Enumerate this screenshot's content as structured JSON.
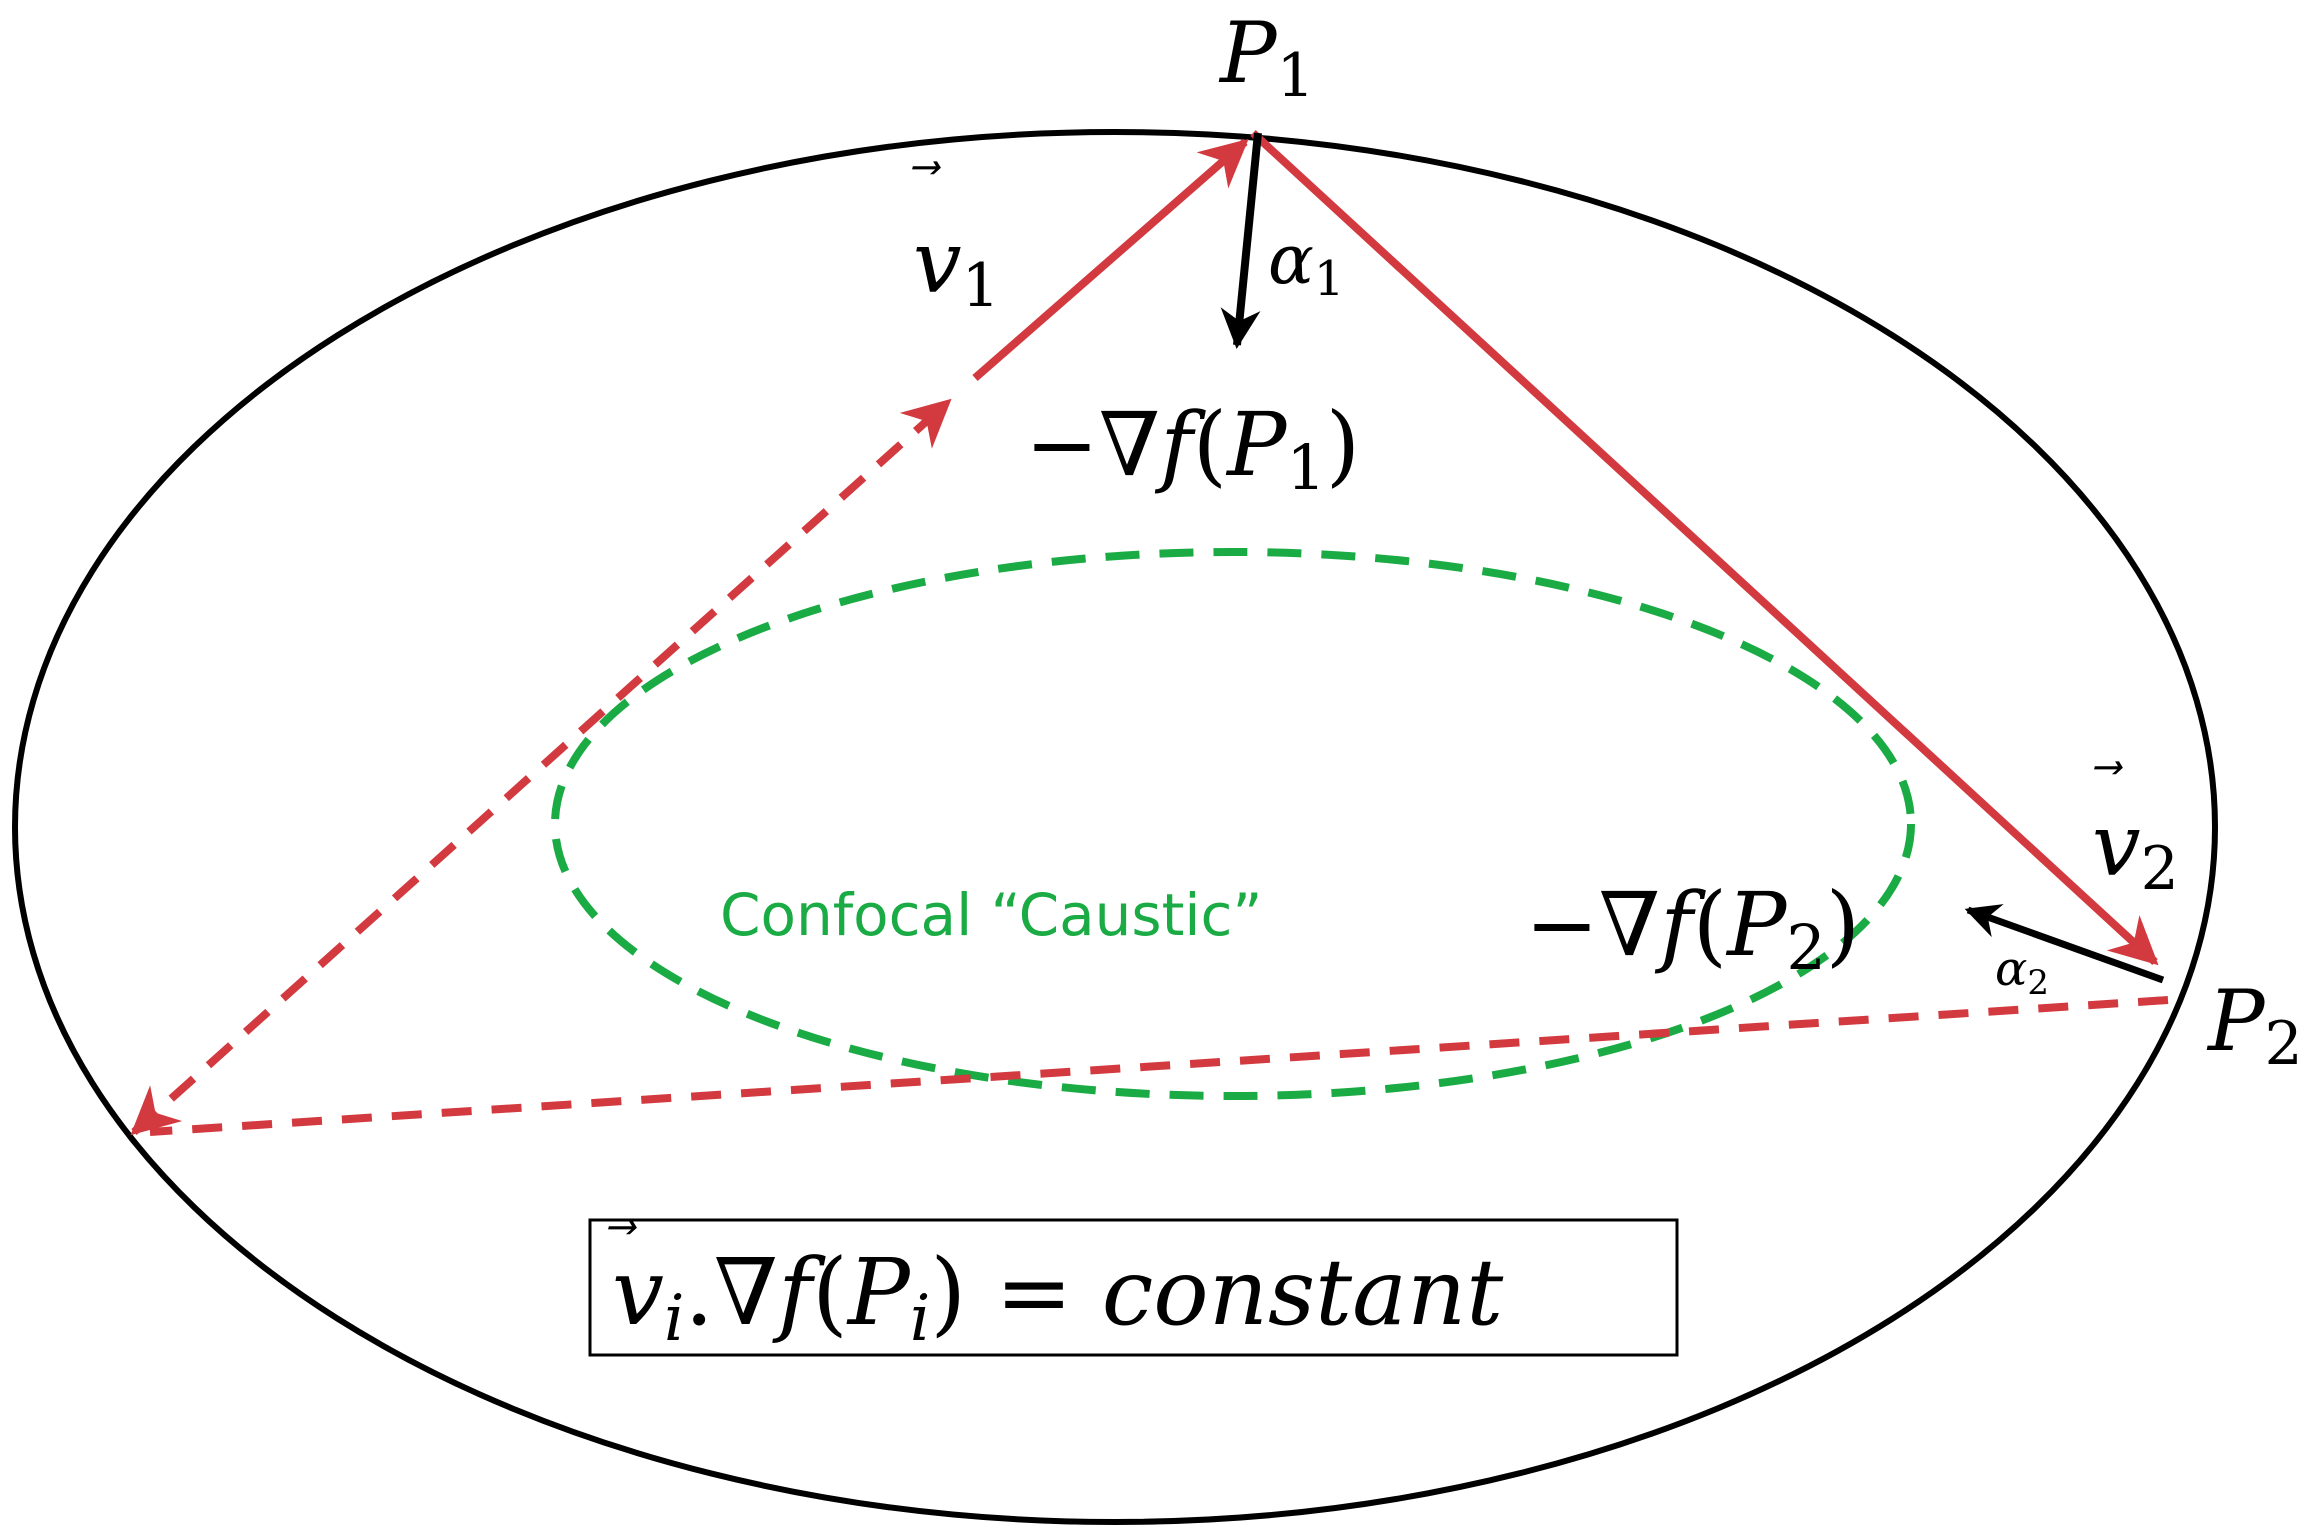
{
  "colors": {
    "ellipse": "#000000",
    "trajectory": "#d33a3f",
    "caustic": "#1aab45",
    "gradient": "#000000",
    "text": "#000000"
  },
  "labels": {
    "p1": {
      "base": "P",
      "sub": "1"
    },
    "p2": {
      "base": "P",
      "sub": "2"
    },
    "v1": {
      "base": "v",
      "sub": "1",
      "arrow": "⃗"
    },
    "v2": {
      "base": "v",
      "sub": "2",
      "arrow": "⃗"
    },
    "alpha1": {
      "base": "α",
      "sub": "1"
    },
    "alpha2": {
      "base": "α",
      "sub": "2"
    },
    "grad1": {
      "prefix": "−∇",
      "f": "f",
      "open": "(",
      "p": "P",
      "sub": "1",
      "close": ")"
    },
    "grad2": {
      "prefix": "−∇",
      "f": "f",
      "open": "(",
      "p": "P",
      "sub": "2",
      "close": ")"
    },
    "caustic": "Confocal “Caustic”",
    "formula": {
      "v": "v",
      "vsub": "i",
      "dot": ".",
      "nabla": "∇",
      "f": "f",
      "open": "(",
      "p": "P",
      "psub": "i",
      "close": ")",
      "eq": " = ",
      "rhs": "constant"
    }
  }
}
